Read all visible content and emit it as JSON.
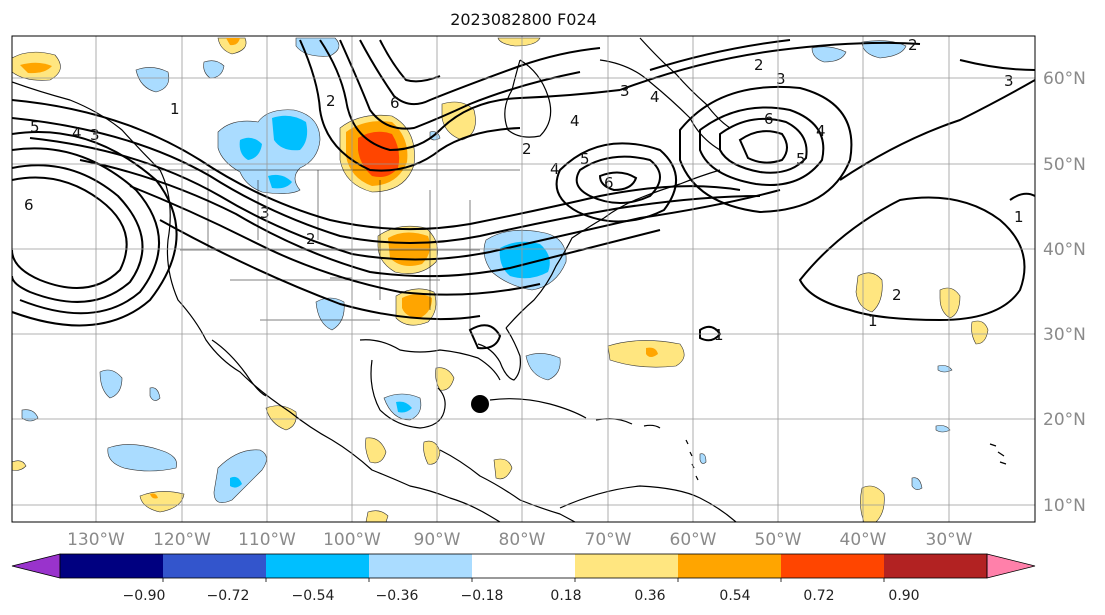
{
  "title": "2023082800 F024",
  "lon_labels": [
    "130°W",
    "120°W",
    "110°W",
    "100°W",
    "90°W",
    "80°W",
    "70°W",
    "60°W",
    "50°W",
    "40°W",
    "30°W"
  ],
  "lat_labels": [
    "60°N",
    "50°N",
    "40°N",
    "30°N",
    "20°N",
    "10°N"
  ],
  "contour_labels": [
    "1",
    "2",
    "3",
    "4",
    "5",
    "6"
  ],
  "colorbar": {
    "tick_labels": [
      "−0.90",
      "−0.72",
      "−0.54",
      "−0.36",
      "−0.18",
      "0.18",
      "0.36",
      "0.54",
      "0.72",
      "0.90"
    ],
    "colors": [
      "#9933cc",
      "#000080",
      "#3355cc",
      "#00bfff",
      "#aadcff",
      "#ffffff",
      "#ffe680",
      "#ffa500",
      "#ff4500",
      "#b22222",
      "#ff80aa"
    ]
  },
  "marker": "storm-center"
}
